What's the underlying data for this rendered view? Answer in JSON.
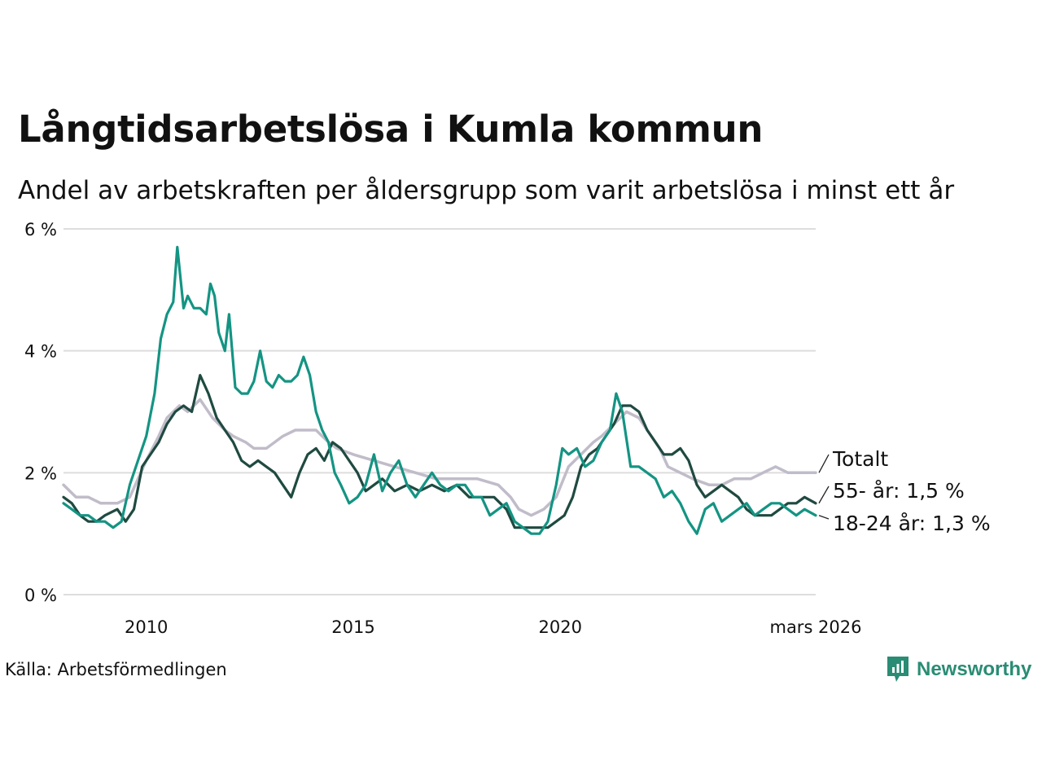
{
  "title": "Långtidsarbetslösa i Kumla kommun",
  "subtitle": "Andel av arbetskraften per åldersgrupp som varit arbetslösa i minst ett år",
  "source": "Källa: Arbetsförmedlingen",
  "brand": "Newsworthy",
  "colors": {
    "total": "#c1bcc9",
    "age55": "#1f4a40",
    "age1824": "#149483",
    "grid": "#dddddd",
    "brand": "#2a8c74"
  },
  "chart_data": {
    "type": "line",
    "title": "Långtidsarbetslösa i Kumla kommun",
    "xlabel": "",
    "ylabel": "",
    "xlim": [
      2008.0,
      2026.17
    ],
    "ylim": [
      0,
      6
    ],
    "x_ticks": [
      {
        "value": 2010,
        "label": "2010"
      },
      {
        "value": 2015,
        "label": "2015"
      },
      {
        "value": 2020,
        "label": "2020"
      },
      {
        "value": 2026.17,
        "label": "mars 2026"
      }
    ],
    "y_ticks": [
      {
        "value": 0,
        "label": "0 %"
      },
      {
        "value": 2,
        "label": "2 %"
      },
      {
        "value": 4,
        "label": "4 %"
      },
      {
        "value": 6,
        "label": "6 %"
      }
    ],
    "series": [
      {
        "key": "total",
        "name": "Totalt",
        "end_label": "Totalt",
        "points": [
          [
            2008.0,
            1.8
          ],
          [
            2008.3,
            1.6
          ],
          [
            2008.6,
            1.6
          ],
          [
            2008.9,
            1.5
          ],
          [
            2009.3,
            1.5
          ],
          [
            2009.6,
            1.6
          ],
          [
            2010.0,
            2.2
          ],
          [
            2010.3,
            2.6
          ],
          [
            2010.5,
            2.9
          ],
          [
            2010.8,
            3.1
          ],
          [
            2011.0,
            3.0
          ],
          [
            2011.3,
            3.2
          ],
          [
            2011.6,
            2.9
          ],
          [
            2011.9,
            2.7
          ],
          [
            2012.1,
            2.6
          ],
          [
            2012.4,
            2.5
          ],
          [
            2012.6,
            2.4
          ],
          [
            2012.9,
            2.4
          ],
          [
            2013.1,
            2.5
          ],
          [
            2013.3,
            2.6
          ],
          [
            2013.6,
            2.7
          ],
          [
            2013.9,
            2.7
          ],
          [
            2014.1,
            2.7
          ],
          [
            2014.4,
            2.5
          ],
          [
            2014.6,
            2.4
          ],
          [
            2015.0,
            2.3
          ],
          [
            2015.5,
            2.2
          ],
          [
            2016.0,
            2.1
          ],
          [
            2016.5,
            2.0
          ],
          [
            2017.0,
            1.9
          ],
          [
            2017.5,
            1.9
          ],
          [
            2018.0,
            1.9
          ],
          [
            2018.5,
            1.8
          ],
          [
            2018.8,
            1.6
          ],
          [
            2019.0,
            1.4
          ],
          [
            2019.3,
            1.3
          ],
          [
            2019.6,
            1.4
          ],
          [
            2019.9,
            1.6
          ],
          [
            2020.2,
            2.1
          ],
          [
            2020.5,
            2.3
          ],
          [
            2020.8,
            2.5
          ],
          [
            2021.0,
            2.6
          ],
          [
            2021.3,
            2.8
          ],
          [
            2021.6,
            3.0
          ],
          [
            2021.9,
            2.9
          ],
          [
            2022.1,
            2.7
          ],
          [
            2022.4,
            2.4
          ],
          [
            2022.6,
            2.1
          ],
          [
            2022.9,
            2.0
          ],
          [
            2023.2,
            1.9
          ],
          [
            2023.6,
            1.8
          ],
          [
            2023.9,
            1.8
          ],
          [
            2024.2,
            1.9
          ],
          [
            2024.6,
            1.9
          ],
          [
            2024.9,
            2.0
          ],
          [
            2025.2,
            2.1
          ],
          [
            2025.5,
            2.0
          ],
          [
            2025.8,
            2.0
          ],
          [
            2026.0,
            2.0
          ],
          [
            2026.17,
            2.0
          ]
        ]
      },
      {
        "key": "age55",
        "name": "55- år",
        "end_label": "55- år: 1,5 %",
        "points": [
          [
            2008.0,
            1.6
          ],
          [
            2008.2,
            1.5
          ],
          [
            2008.4,
            1.3
          ],
          [
            2008.6,
            1.2
          ],
          [
            2008.8,
            1.2
          ],
          [
            2009.0,
            1.3
          ],
          [
            2009.3,
            1.4
          ],
          [
            2009.5,
            1.2
          ],
          [
            2009.7,
            1.4
          ],
          [
            2009.9,
            2.1
          ],
          [
            2010.1,
            2.3
          ],
          [
            2010.3,
            2.5
          ],
          [
            2010.5,
            2.8
          ],
          [
            2010.7,
            3.0
          ],
          [
            2010.9,
            3.1
          ],
          [
            2011.1,
            3.0
          ],
          [
            2011.3,
            3.6
          ],
          [
            2011.5,
            3.3
          ],
          [
            2011.7,
            2.9
          ],
          [
            2011.9,
            2.7
          ],
          [
            2012.1,
            2.5
          ],
          [
            2012.3,
            2.2
          ],
          [
            2012.5,
            2.1
          ],
          [
            2012.7,
            2.2
          ],
          [
            2012.9,
            2.1
          ],
          [
            2013.1,
            2.0
          ],
          [
            2013.3,
            1.8
          ],
          [
            2013.5,
            1.6
          ],
          [
            2013.7,
            2.0
          ],
          [
            2013.9,
            2.3
          ],
          [
            2014.1,
            2.4
          ],
          [
            2014.3,
            2.2
          ],
          [
            2014.5,
            2.5
          ],
          [
            2014.7,
            2.4
          ],
          [
            2014.9,
            2.2
          ],
          [
            2015.1,
            2.0
          ],
          [
            2015.3,
            1.7
          ],
          [
            2015.5,
            1.8
          ],
          [
            2015.7,
            1.9
          ],
          [
            2016.0,
            1.7
          ],
          [
            2016.3,
            1.8
          ],
          [
            2016.6,
            1.7
          ],
          [
            2016.9,
            1.8
          ],
          [
            2017.2,
            1.7
          ],
          [
            2017.5,
            1.8
          ],
          [
            2017.8,
            1.6
          ],
          [
            2018.1,
            1.6
          ],
          [
            2018.4,
            1.6
          ],
          [
            2018.7,
            1.4
          ],
          [
            2018.9,
            1.1
          ],
          [
            2019.1,
            1.1
          ],
          [
            2019.3,
            1.1
          ],
          [
            2019.5,
            1.1
          ],
          [
            2019.7,
            1.1
          ],
          [
            2019.9,
            1.2
          ],
          [
            2020.1,
            1.3
          ],
          [
            2020.3,
            1.6
          ],
          [
            2020.5,
            2.1
          ],
          [
            2020.7,
            2.3
          ],
          [
            2020.9,
            2.4
          ],
          [
            2021.1,
            2.6
          ],
          [
            2021.3,
            2.8
          ],
          [
            2021.5,
            3.1
          ],
          [
            2021.7,
            3.1
          ],
          [
            2021.9,
            3.0
          ],
          [
            2022.1,
            2.7
          ],
          [
            2022.3,
            2.5
          ],
          [
            2022.5,
            2.3
          ],
          [
            2022.7,
            2.3
          ],
          [
            2022.9,
            2.4
          ],
          [
            2023.1,
            2.2
          ],
          [
            2023.3,
            1.8
          ],
          [
            2023.5,
            1.6
          ],
          [
            2023.7,
            1.7
          ],
          [
            2023.9,
            1.8
          ],
          [
            2024.1,
            1.7
          ],
          [
            2024.3,
            1.6
          ],
          [
            2024.5,
            1.4
          ],
          [
            2024.7,
            1.3
          ],
          [
            2024.9,
            1.3
          ],
          [
            2025.1,
            1.3
          ],
          [
            2025.3,
            1.4
          ],
          [
            2025.5,
            1.5
          ],
          [
            2025.7,
            1.5
          ],
          [
            2025.9,
            1.6
          ],
          [
            2026.17,
            1.5
          ]
        ]
      },
      {
        "key": "age1824",
        "name": "18-24 år",
        "end_label": "18-24 år: 1,3 %",
        "points": [
          [
            2008.0,
            1.5
          ],
          [
            2008.2,
            1.4
          ],
          [
            2008.4,
            1.3
          ],
          [
            2008.6,
            1.3
          ],
          [
            2008.8,
            1.2
          ],
          [
            2009.0,
            1.2
          ],
          [
            2009.2,
            1.1
          ],
          [
            2009.4,
            1.2
          ],
          [
            2009.6,
            1.8
          ],
          [
            2009.8,
            2.2
          ],
          [
            2010.0,
            2.6
          ],
          [
            2010.2,
            3.3
          ],
          [
            2010.35,
            4.2
          ],
          [
            2010.5,
            4.6
          ],
          [
            2010.65,
            4.8
          ],
          [
            2010.75,
            5.7
          ],
          [
            2010.9,
            4.7
          ],
          [
            2011.0,
            4.9
          ],
          [
            2011.15,
            4.7
          ],
          [
            2011.3,
            4.7
          ],
          [
            2011.45,
            4.6
          ],
          [
            2011.55,
            5.1
          ],
          [
            2011.65,
            4.9
          ],
          [
            2011.75,
            4.3
          ],
          [
            2011.9,
            4.0
          ],
          [
            2012.0,
            4.6
          ],
          [
            2012.15,
            3.4
          ],
          [
            2012.3,
            3.3
          ],
          [
            2012.45,
            3.3
          ],
          [
            2012.6,
            3.5
          ],
          [
            2012.75,
            4.0
          ],
          [
            2012.9,
            3.5
          ],
          [
            2013.05,
            3.4
          ],
          [
            2013.2,
            3.6
          ],
          [
            2013.35,
            3.5
          ],
          [
            2013.5,
            3.5
          ],
          [
            2013.65,
            3.6
          ],
          [
            2013.8,
            3.9
          ],
          [
            2013.95,
            3.6
          ],
          [
            2014.1,
            3.0
          ],
          [
            2014.25,
            2.7
          ],
          [
            2014.4,
            2.5
          ],
          [
            2014.55,
            2.0
          ],
          [
            2014.7,
            1.8
          ],
          [
            2014.9,
            1.5
          ],
          [
            2015.1,
            1.6
          ],
          [
            2015.3,
            1.8
          ],
          [
            2015.5,
            2.3
          ],
          [
            2015.7,
            1.7
          ],
          [
            2015.9,
            2.0
          ],
          [
            2016.1,
            2.2
          ],
          [
            2016.3,
            1.8
          ],
          [
            2016.5,
            1.6
          ],
          [
            2016.7,
            1.8
          ],
          [
            2016.9,
            2.0
          ],
          [
            2017.1,
            1.8
          ],
          [
            2017.3,
            1.7
          ],
          [
            2017.5,
            1.8
          ],
          [
            2017.7,
            1.8
          ],
          [
            2017.9,
            1.6
          ],
          [
            2018.1,
            1.6
          ],
          [
            2018.3,
            1.3
          ],
          [
            2018.5,
            1.4
          ],
          [
            2018.7,
            1.5
          ],
          [
            2018.9,
            1.2
          ],
          [
            2019.1,
            1.1
          ],
          [
            2019.3,
            1.0
          ],
          [
            2019.5,
            1.0
          ],
          [
            2019.7,
            1.2
          ],
          [
            2019.9,
            1.8
          ],
          [
            2020.05,
            2.4
          ],
          [
            2020.2,
            2.3
          ],
          [
            2020.4,
            2.4
          ],
          [
            2020.6,
            2.1
          ],
          [
            2020.8,
            2.2
          ],
          [
            2021.0,
            2.5
          ],
          [
            2021.2,
            2.7
          ],
          [
            2021.35,
            3.3
          ],
          [
            2021.5,
            3.0
          ],
          [
            2021.7,
            2.1
          ],
          [
            2021.9,
            2.1
          ],
          [
            2022.1,
            2.0
          ],
          [
            2022.3,
            1.9
          ],
          [
            2022.5,
            1.6
          ],
          [
            2022.7,
            1.7
          ],
          [
            2022.9,
            1.5
          ],
          [
            2023.1,
            1.2
          ],
          [
            2023.3,
            1.0
          ],
          [
            2023.5,
            1.4
          ],
          [
            2023.7,
            1.5
          ],
          [
            2023.9,
            1.2
          ],
          [
            2024.1,
            1.3
          ],
          [
            2024.3,
            1.4
          ],
          [
            2024.5,
            1.5
          ],
          [
            2024.7,
            1.3
          ],
          [
            2024.9,
            1.4
          ],
          [
            2025.1,
            1.5
          ],
          [
            2025.3,
            1.5
          ],
          [
            2025.5,
            1.4
          ],
          [
            2025.7,
            1.3
          ],
          [
            2025.9,
            1.4
          ],
          [
            2026.17,
            1.3
          ]
        ]
      }
    ]
  }
}
